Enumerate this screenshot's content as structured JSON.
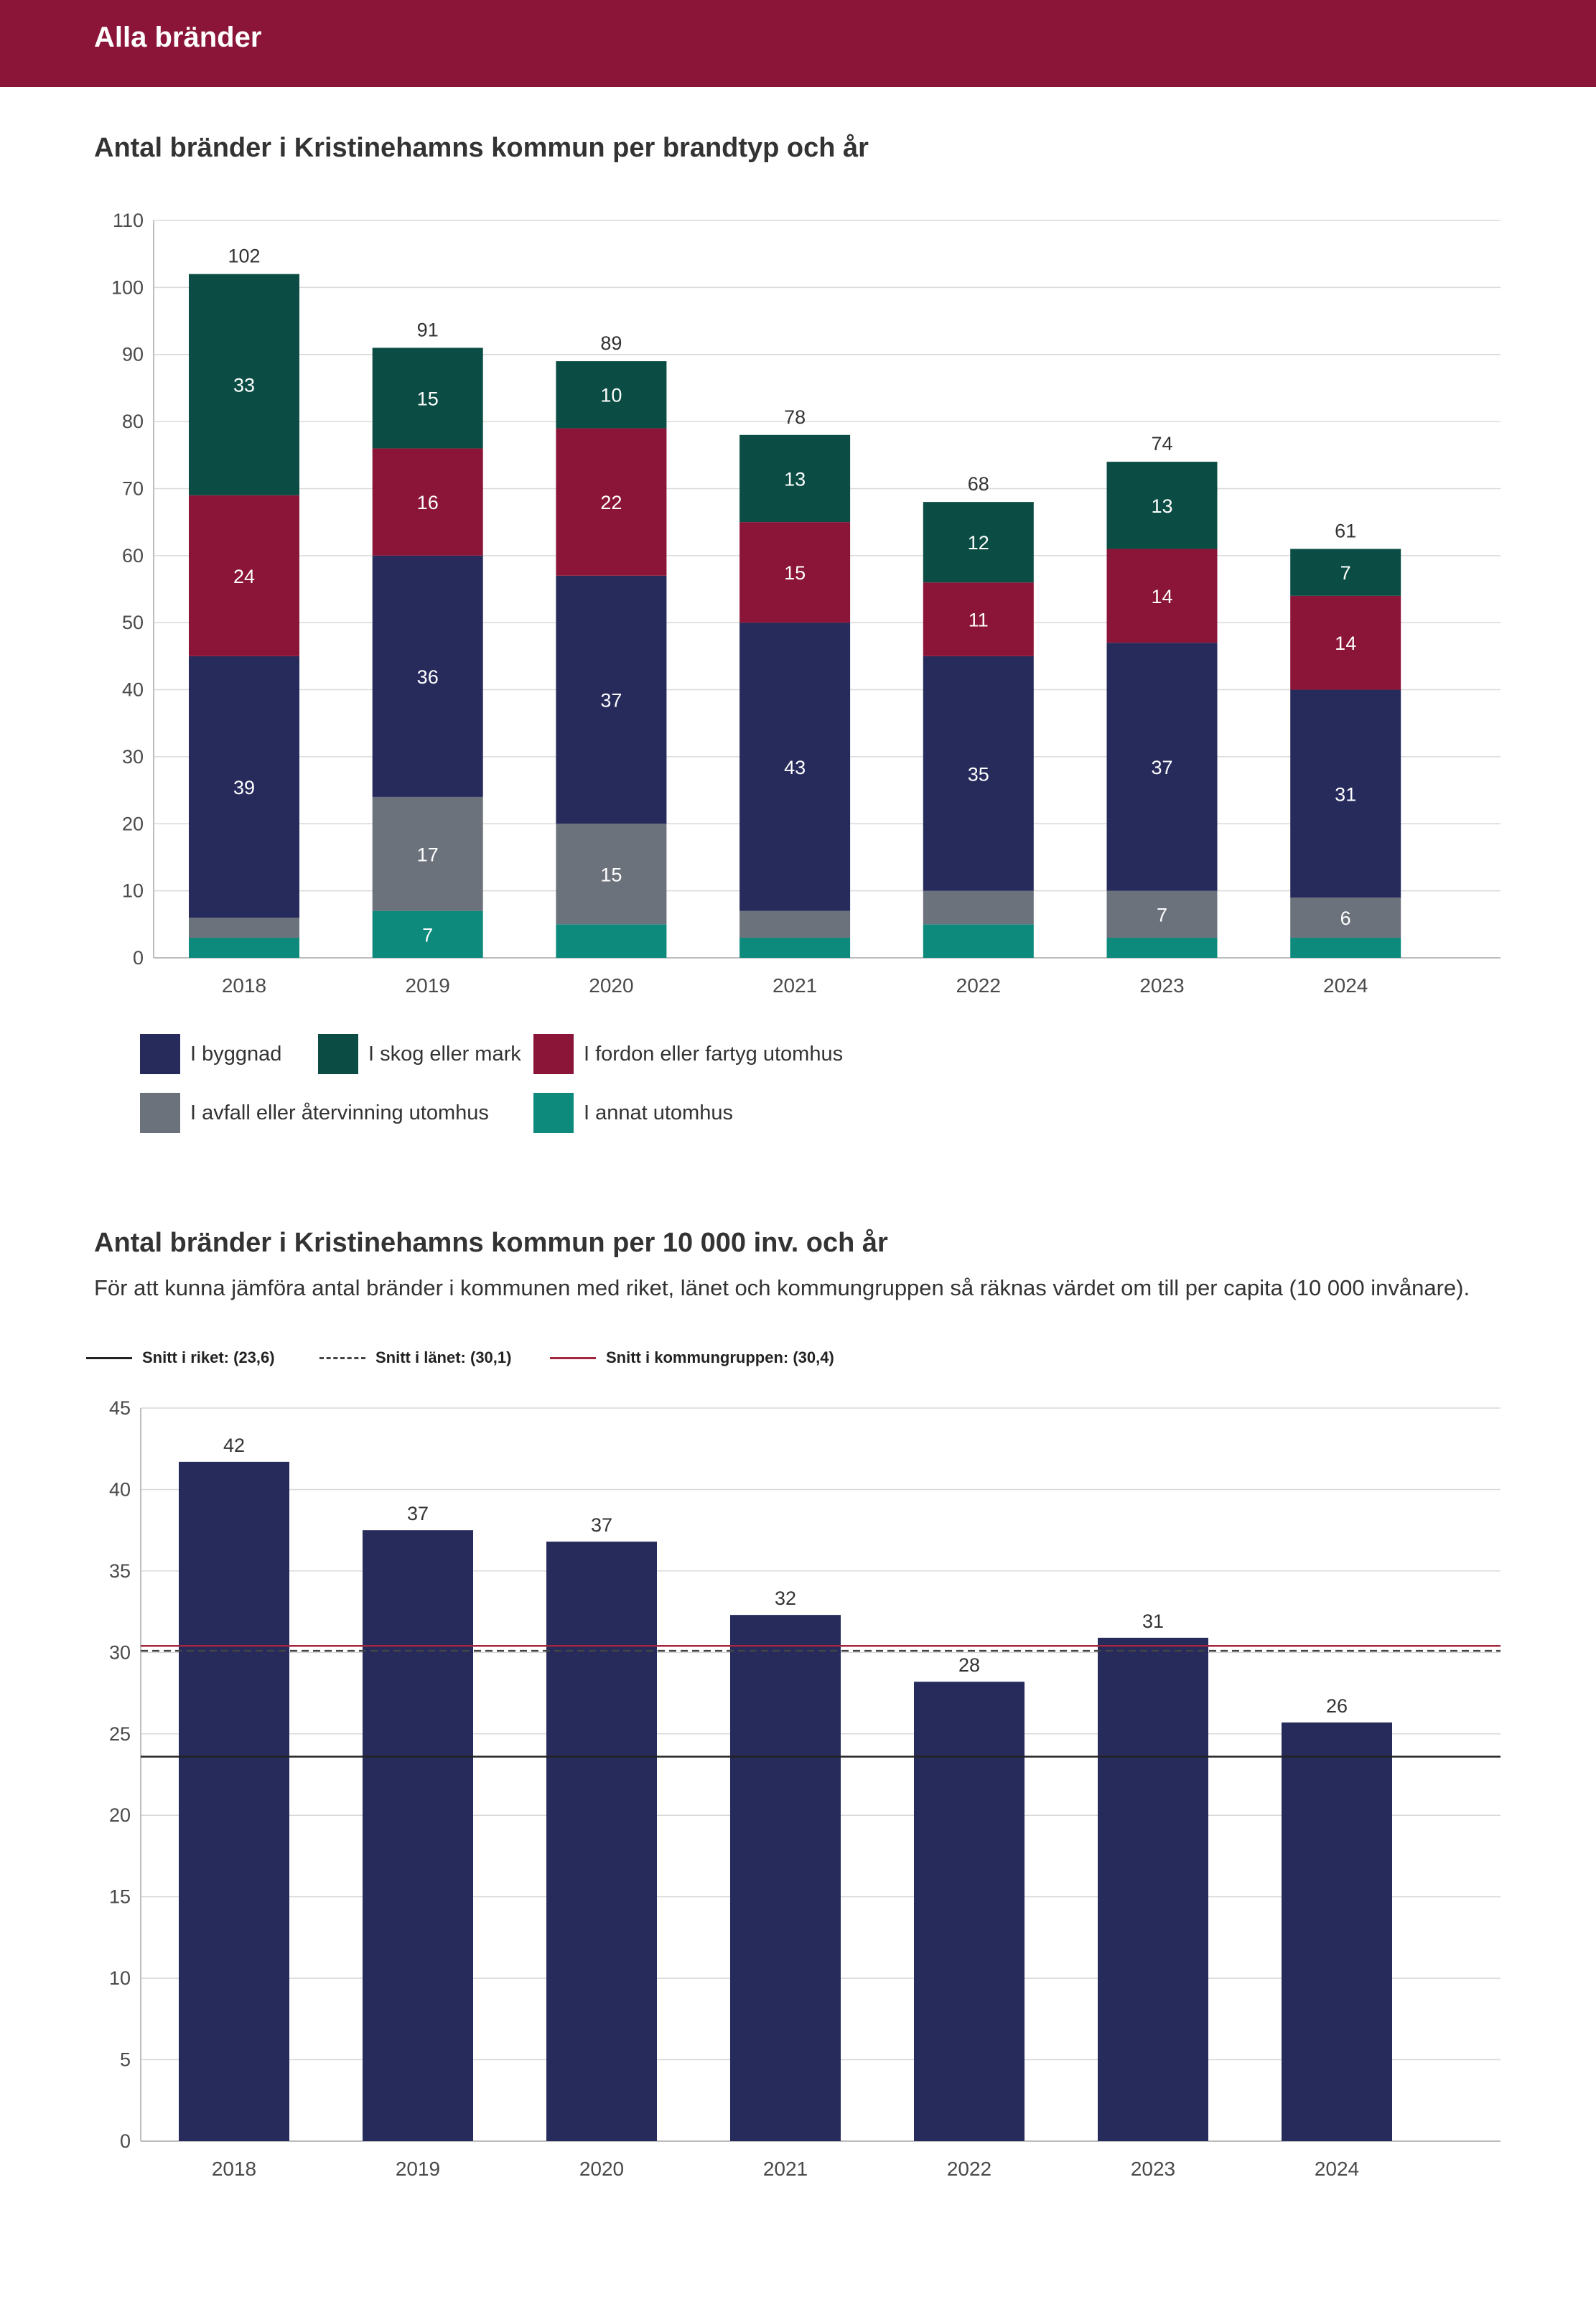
{
  "header": {
    "title": "Alla bränder"
  },
  "chart1_title": "Antal bränder i Kristinehamns kommun per brandtyp och år",
  "chart2_title": "Antal bränder i Kristinehamns kommun per 10 000 inv. och år",
  "chart2_subtitle": "För att kunna jämföra antal bränder i kommunen med riket, länet och kommungruppen så räknas värdet om till per capita (10 000 invånare).",
  "colors": {
    "header": "#8b1538",
    "byggnad": "#262b5c",
    "skog": "#0b4d44",
    "fordon": "#8b1538",
    "avfall": "#6c727c",
    "annat": "#0d8a7c",
    "grid": "#d9d9d9",
    "riket": "#222222",
    "lanet": "#444444",
    "kommungrupp": "#a3263f"
  },
  "chart_data": [
    {
      "type": "bar",
      "stacked": true,
      "title": "Antal bränder i Kristinehamns kommun per brandtyp och år",
      "categories": [
        "2018",
        "2019",
        "2020",
        "2021",
        "2022",
        "2023",
        "2024"
      ],
      "ylim": [
        0,
        110
      ],
      "yticks": [
        "0",
        "10",
        "20",
        "30",
        "40",
        "50",
        "60",
        "70",
        "80",
        "90",
        "100",
        "110"
      ],
      "grid": true,
      "legend_position": "bottom",
      "series": [
        {
          "name": "I annat utomhus",
          "color_key": "annat",
          "values": [
            3,
            7,
            5,
            3,
            5,
            3,
            3
          ],
          "labels": [
            "",
            "7",
            "",
            "",
            "",
            "",
            ""
          ]
        },
        {
          "name": "I avfall eller återvinning utomhus",
          "color_key": "avfall",
          "values": [
            3,
            17,
            15,
            4,
            5,
            7,
            6
          ],
          "labels": [
            "",
            "17",
            "15",
            "",
            "",
            "7",
            "6"
          ]
        },
        {
          "name": "I byggnad",
          "color_key": "byggnad",
          "values": [
            39,
            36,
            37,
            43,
            35,
            37,
            31
          ],
          "labels": [
            "39",
            "36",
            "37",
            "43",
            "35",
            "37",
            "31"
          ]
        },
        {
          "name": "I fordon eller fartyg utomhus",
          "color_key": "fordon",
          "values": [
            24,
            16,
            22,
            15,
            11,
            14,
            14
          ],
          "labels": [
            "24",
            "16",
            "22",
            "15",
            "11",
            "14",
            "14"
          ]
        },
        {
          "name": "I skog eller mark",
          "color_key": "skog",
          "values": [
            33,
            15,
            10,
            13,
            12,
            13,
            7
          ],
          "labels": [
            "33",
            "15",
            "10",
            "13",
            "12",
            "13",
            "7"
          ]
        }
      ],
      "totals": [
        "102",
        "91",
        "89",
        "78",
        "68",
        "74",
        "61"
      ],
      "legend_order": [
        "I byggnad",
        "I skog eller mark",
        "I fordon eller fartyg utomhus",
        "I avfall eller återvinning utomhus",
        "I annat utomhus"
      ]
    },
    {
      "type": "bar",
      "title": "Antal bränder i Kristinehamns kommun per 10 000 inv. och år",
      "categories": [
        "2018",
        "2019",
        "2020",
        "2021",
        "2022",
        "2023",
        "2024"
      ],
      "values": [
        41.7,
        37.5,
        36.8,
        32.3,
        28.2,
        30.9,
        25.7
      ],
      "value_labels": [
        "42",
        "37",
        "37",
        "32",
        "28",
        "31",
        "26"
      ],
      "ylim": [
        0,
        45
      ],
      "yticks": [
        "0",
        "5",
        "10",
        "15",
        "20",
        "25",
        "30",
        "35",
        "40",
        "45"
      ],
      "grid": true,
      "reference_lines": [
        {
          "name": "Snitt i riket: (23,6)",
          "value": 23.6,
          "style": "solid",
          "color_key": "riket"
        },
        {
          "name": "Snitt i länet: (30,1)",
          "value": 30.1,
          "style": "dashed",
          "color_key": "lanet"
        },
        {
          "name": "Snitt i kommungruppen: (30,4)",
          "value": 30.4,
          "style": "solid",
          "color_key": "kommungrupp"
        }
      ]
    }
  ]
}
